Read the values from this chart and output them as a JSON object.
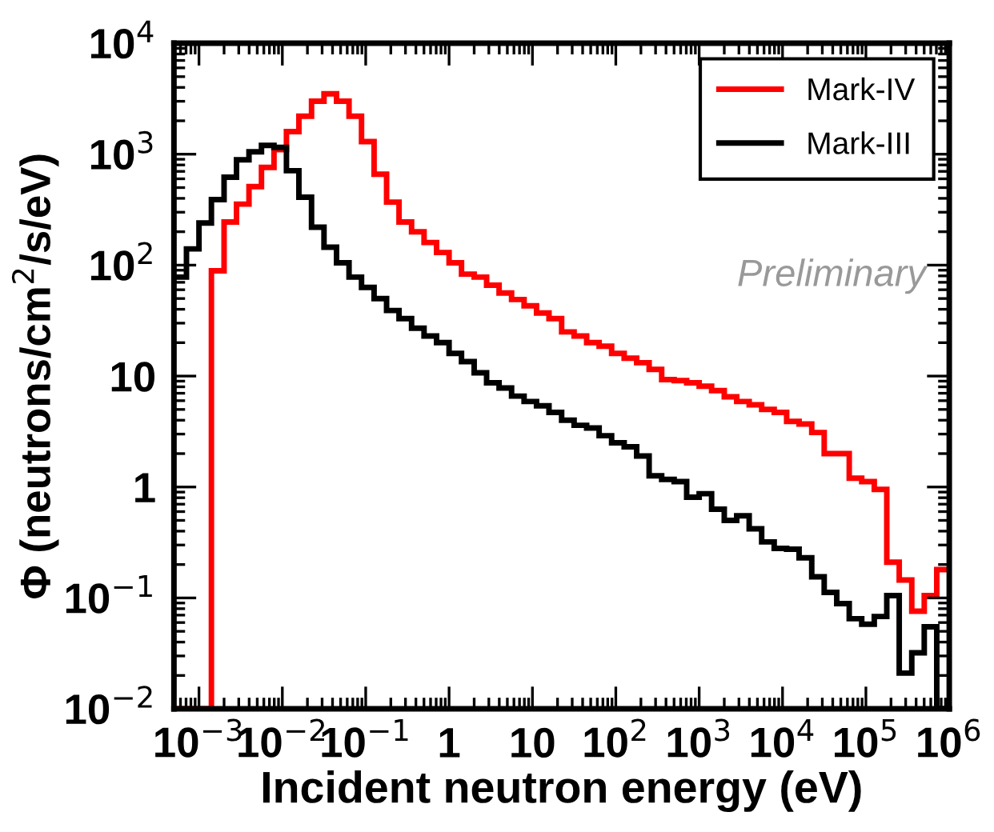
{
  "chart_data": {
    "type": "histogram",
    "xlabel": "Incident neutron energy (eV)",
    "ylabel": "Φ (neutrons/cm$^{2}$/s/eV)",
    "log": "xy",
    "bins": [
      0.000501,
      0.000708,
      0.001,
      0.00141,
      0.002,
      0.00282,
      0.00398,
      0.00562,
      0.00794,
      0.0112,
      0.0158,
      0.0224,
      0.0316,
      0.0447,
      0.0631,
      0.0891,
      0.126,
      0.178,
      0.251,
      0.355,
      0.501,
      0.708,
      1,
      1.41,
      2.0,
      2.82,
      3.98,
      5.62,
      7.94,
      11.2,
      15.8,
      22.4,
      31.6,
      44.7,
      63.1,
      89.1,
      126,
      178,
      251,
      355,
      501,
      708,
      1000,
      1410,
      2000,
      2820,
      3980,
      5620,
      7940,
      11200,
      15800,
      22400,
      31600,
      44700,
      63100,
      89100,
      126000,
      178000,
      251000,
      355000,
      501000,
      708000,
      1000000
    ],
    "series": [
      {
        "name": "Mark-IV",
        "color": "#ff0000",
        "values": [
          0.01,
          0.01,
          0.01,
          89,
          245,
          355,
          510,
          760,
          1100,
          1600,
          2200,
          3000,
          3500,
          3000,
          2200,
          1300,
          660,
          370,
          245,
          200,
          160,
          130,
          105,
          83,
          78,
          66,
          56,
          49,
          43,
          37,
          33,
          25,
          23,
          20,
          18.6,
          16,
          14.5,
          13.2,
          11.5,
          9.3,
          9.1,
          8.7,
          8.1,
          7.4,
          6.5,
          5.9,
          5.5,
          5.0,
          4.7,
          3.9,
          3.7,
          3.1,
          2.0,
          2.0,
          1.2,
          1.12,
          0.95,
          0.21,
          0.145,
          0.076,
          0.105,
          0.18
        ]
      },
      {
        "name": "Mark-III",
        "color": "#000000",
        "values": [
          78,
          140,
          240,
          390,
          620,
          890,
          1050,
          1200,
          1150,
          710,
          410,
          220,
          145,
          105,
          78,
          63,
          50,
          39,
          33,
          27,
          23,
          20,
          16,
          13.5,
          10.7,
          8.7,
          7.8,
          6.6,
          5.9,
          5.4,
          4.7,
          4.0,
          3.6,
          3.4,
          2.9,
          2.5,
          2.3,
          1.9,
          1.26,
          1.17,
          1.12,
          0.81,
          0.87,
          0.63,
          0.5,
          0.55,
          0.42,
          0.32,
          0.28,
          0.275,
          0.23,
          0.155,
          0.112,
          0.089,
          0.065,
          0.058,
          0.068,
          0.105,
          0.021,
          0.032,
          0.055,
          0.01
        ]
      }
    ],
    "xlim": [
      0.000501,
      1000000
    ],
    "ylim": [
      0.01,
      10000
    ],
    "xticks": [
      {
        "value": 0.001,
        "label": "10$^{−3}$"
      },
      {
        "value": 0.01,
        "label": "10$^{−2}$"
      },
      {
        "value": 0.1,
        "label": "10$^{−1}$"
      },
      1,
      10,
      {
        "value": 100,
        "label": "10$^{2}$"
      },
      {
        "value": 1000,
        "label": "10$^{3}$"
      },
      {
        "value": 10000,
        "label": "10$^{4}$"
      },
      {
        "value": 100000,
        "label": "10$^{5}$"
      },
      {
        "value": 1000000,
        "label": "10$^{6}$"
      }
    ],
    "yticks": [
      {
        "value": 0.01,
        "label": "10$^{−2}$"
      },
      {
        "value": 0.1,
        "label": "10$^{−1}$"
      },
      1,
      10,
      {
        "value": 100,
        "label": "10$^{2}$"
      },
      {
        "value": 1000,
        "label": "10$^{3}$"
      },
      {
        "value": 10000,
        "label": "10$^{4}$"
      }
    ],
    "grid": false,
    "legend": "top right",
    "annotations": [
      "Preliminary"
    ]
  }
}
